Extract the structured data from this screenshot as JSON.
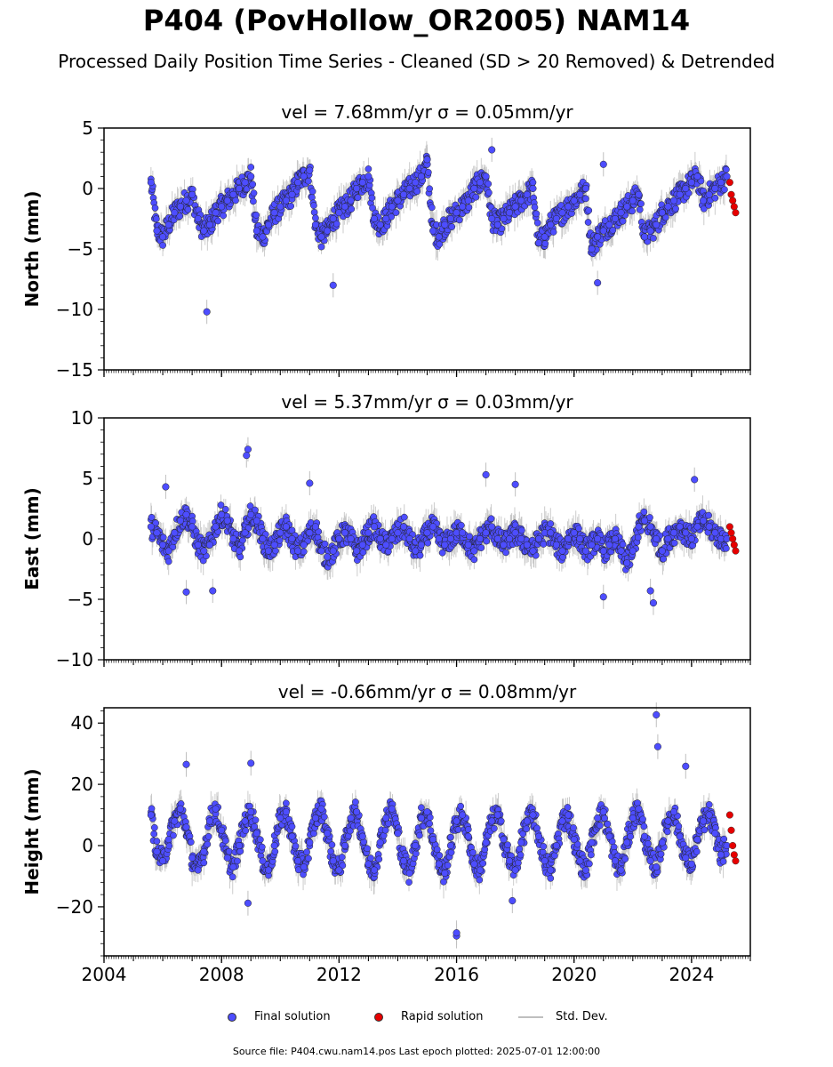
{
  "figure": {
    "title": "P404 (PovHollow_OR2005) NAM14",
    "subtitle": "Processed Daily Position Time Series - Cleaned (SD > 20 Removed) & Detrended",
    "footer": "Source file: P404.cwu.nam14.pos  Last epoch plotted: 2025-07-01 12:00:00"
  },
  "legend": {
    "final": "Final solution",
    "rapid": "Rapid solution",
    "std": "Std. Dev."
  },
  "colors": {
    "final": "#4d4dff",
    "rapid": "#e60000",
    "std": "#bfbfbf",
    "axis": "#000000"
  },
  "chart_data": [
    {
      "type": "scatter",
      "title": "vel = 7.68mm/yr   σ = 0.05mm/yr",
      "ylabel": "North (mm)",
      "xlabel": "",
      "xlim": [
        2004.0,
        2026.0
      ],
      "ylim": [
        -15,
        5
      ],
      "yticks": [
        5,
        0,
        -5,
        -10,
        -15
      ],
      "xticks": [
        2004,
        2008,
        2012,
        2016,
        2020,
        2024
      ],
      "show_xticklabels": false,
      "grid": false,
      "series": [
        {
          "name": "Final solution",
          "x": [
            2005.6,
            2005.8,
            2006.0,
            2006.2,
            2006.4,
            2006.6,
            2006.8,
            2007.0,
            2007.2,
            2007.4,
            2007.6,
            2007.8,
            2008.0,
            2008.2,
            2008.4,
            2008.6,
            2008.8,
            2009.0,
            2009.2,
            2009.4,
            2009.6,
            2009.8,
            2010.0,
            2010.2,
            2010.4,
            2010.6,
            2010.8,
            2011.0,
            2011.2,
            2011.4,
            2011.6,
            2011.8,
            2012.0,
            2012.2,
            2012.4,
            2012.6,
            2012.8,
            2013.0,
            2013.2,
            2013.4,
            2013.6,
            2013.8,
            2014.0,
            2014.2,
            2014.4,
            2014.6,
            2014.8,
            2015.0,
            2015.2,
            2015.4,
            2015.6,
            2015.8,
            2016.0,
            2016.2,
            2016.4,
            2016.6,
            2016.8,
            2017.0,
            2017.2,
            2017.4,
            2017.6,
            2017.8,
            2018.0,
            2018.2,
            2018.4,
            2018.6,
            2018.8,
            2019.0,
            2019.2,
            2019.4,
            2019.6,
            2019.8,
            2020.0,
            2020.2,
            2020.4,
            2020.6,
            2020.8,
            2021.0,
            2021.2,
            2021.4,
            2021.6,
            2021.8,
            2022.0,
            2022.2,
            2022.4,
            2022.6,
            2022.8,
            2023.0,
            2023.2,
            2023.4,
            2023.6,
            2023.8,
            2024.0,
            2024.2,
            2024.4,
            2024.6,
            2024.8,
            2025.0,
            2025.2
          ],
          "y": [
            0.5,
            -3.5,
            -4,
            -3,
            -2,
            -1.5,
            -1,
            -0.5,
            -2.5,
            -3.5,
            -3,
            -2,
            -1.5,
            -1,
            -0.5,
            0,
            0.5,
            1,
            -3.5,
            -4,
            -3,
            -2,
            -1.5,
            -1,
            -0.5,
            0.5,
            1,
            1.5,
            -3,
            -4,
            -3.5,
            -2.5,
            -2,
            -1.5,
            -1,
            0,
            0.5,
            1,
            -2.5,
            -3,
            -2.5,
            -1.5,
            -1,
            -0.5,
            0,
            0.5,
            1,
            2,
            -3.5,
            -4,
            -3,
            -2.5,
            -2,
            -1.5,
            -1,
            0,
            0.5,
            1,
            -2.5,
            -3,
            -2.5,
            -2,
            -1.5,
            -1,
            -0.5,
            0,
            -4.5,
            -4,
            -3,
            -2.5,
            -2,
            -1.5,
            -1,
            -0.5,
            0,
            -5,
            -4,
            -3.5,
            -3,
            -2.5,
            -2,
            -1.5,
            -1,
            -0.5,
            -4,
            -3.5,
            -3,
            -2,
            -1.5,
            -1,
            -0.5,
            0,
            0.5,
            1,
            -1,
            -0.5,
            0,
            0.5,
            1
          ]
        },
        {
          "name": "Rapid solution",
          "x": [
            2025.3,
            2025.35,
            2025.4,
            2025.45,
            2025.5
          ],
          "y": [
            0.5,
            -0.5,
            -1,
            -1.5,
            -2
          ]
        }
      ],
      "outliers": [
        [
          2007.5,
          -10.2
        ],
        [
          2011.8,
          -8.0
        ],
        [
          2017.2,
          3.2
        ],
        [
          2020.8,
          -7.8
        ],
        [
          2015.0,
          2.4
        ],
        [
          2021.0,
          2.0
        ]
      ]
    },
    {
      "type": "scatter",
      "title": "vel = 5.37mm/yr   σ = 0.03mm/yr",
      "ylabel": "East (mm)",
      "xlabel": "",
      "xlim": [
        2004.0,
        2026.0
      ],
      "ylim": [
        -10,
        10
      ],
      "yticks": [
        10,
        5,
        0,
        -5,
        -10
      ],
      "xticks": [
        2004,
        2008,
        2012,
        2016,
        2020,
        2024
      ],
      "show_xticklabels": false,
      "grid": false,
      "series": [
        {
          "name": "Final solution",
          "x": [
            2005.6,
            2005.8,
            2006.0,
            2006.2,
            2006.4,
            2006.6,
            2006.8,
            2007.0,
            2007.2,
            2007.4,
            2007.6,
            2007.8,
            2008.0,
            2008.2,
            2008.4,
            2008.6,
            2008.8,
            2009.0,
            2009.2,
            2009.4,
            2009.6,
            2009.8,
            2010.0,
            2010.2,
            2010.4,
            2010.6,
            2010.8,
            2011.0,
            2011.2,
            2011.4,
            2011.6,
            2011.8,
            2012.0,
            2012.2,
            2012.4,
            2012.6,
            2012.8,
            2013.0,
            2013.2,
            2013.4,
            2013.6,
            2013.8,
            2014.0,
            2014.2,
            2014.4,
            2014.6,
            2014.8,
            2015.0,
            2015.2,
            2015.4,
            2015.6,
            2015.8,
            2016.0,
            2016.2,
            2016.4,
            2016.6,
            2016.8,
            2017.0,
            2017.2,
            2017.4,
            2017.6,
            2017.8,
            2018.0,
            2018.2,
            2018.4,
            2018.6,
            2018.8,
            2019.0,
            2019.2,
            2019.4,
            2019.6,
            2019.8,
            2020.0,
            2020.2,
            2020.4,
            2020.6,
            2020.8,
            2021.0,
            2021.2,
            2021.4,
            2021.6,
            2021.8,
            2022.0,
            2022.2,
            2022.4,
            2022.6,
            2022.8,
            2023.0,
            2023.2,
            2023.4,
            2023.6,
            2023.8,
            2024.0,
            2024.2,
            2024.4,
            2024.6,
            2024.8,
            2025.0,
            2025.2
          ],
          "y": [
            1,
            0.5,
            -0.5,
            -1,
            0.5,
            1.5,
            2,
            1,
            -0.5,
            -1,
            -0.5,
            1,
            2,
            1.5,
            0,
            -1,
            0.5,
            2,
            1.5,
            0,
            -1,
            -0.5,
            0.5,
            1,
            0,
            -1,
            -0.5,
            0.5,
            1,
            -1,
            -1.5,
            -1,
            0,
            0.5,
            0,
            -1,
            -0.5,
            0.5,
            1,
            0,
            -0.5,
            0,
            0.5,
            1,
            0,
            -1,
            -0.5,
            0.5,
            1,
            0,
            -0.5,
            0,
            0.5,
            0.5,
            -0.5,
            -1,
            0,
            0.5,
            1,
            0,
            -0.5,
            0,
            0.5,
            0,
            -0.5,
            -1,
            0,
            0.5,
            0.5,
            -0.5,
            -1,
            0,
            0.5,
            0,
            -1,
            -0.5,
            0,
            -1,
            -0.5,
            0,
            -1,
            -2,
            -1,
            1,
            1.5,
            1,
            0,
            -1,
            0,
            0.5,
            1,
            0.5,
            0,
            1,
            1.5,
            1,
            0.5,
            0,
            0
          ]
        },
        {
          "name": "Rapid solution",
          "x": [
            2025.3,
            2025.35,
            2025.4,
            2025.45,
            2025.5
          ],
          "y": [
            1,
            0.5,
            0,
            -0.5,
            -1
          ]
        }
      ],
      "outliers": [
        [
          2008.9,
          7.4
        ],
        [
          2008.85,
          6.9
        ],
        [
          2017.0,
          5.3
        ],
        [
          2024.1,
          4.9
        ],
        [
          2011.0,
          4.6
        ],
        [
          2006.1,
          4.3
        ],
        [
          2018.0,
          4.5
        ],
        [
          2022.7,
          -5.3
        ],
        [
          2022.6,
          -4.3
        ],
        [
          2007.7,
          -4.3
        ],
        [
          2006.8,
          -4.4
        ],
        [
          2021.0,
          -4.8
        ]
      ]
    },
    {
      "type": "scatter",
      "title": "vel = -0.66mm/yr   σ = 0.08mm/yr",
      "ylabel": "Height (mm)",
      "xlabel": "",
      "xlim": [
        2004.0,
        2026.0
      ],
      "ylim": [
        -36,
        45
      ],
      "yticks": [
        40,
        20,
        0,
        -20
      ],
      "xticks": [
        2004,
        2008,
        2012,
        2016,
        2020,
        2024
      ],
      "show_xticklabels": true,
      "grid": false,
      "series": [
        {
          "name": "Final solution",
          "x": [
            2005.6,
            2005.8,
            2006.0,
            2006.2,
            2006.4,
            2006.6,
            2006.8,
            2007.0,
            2007.2,
            2007.4,
            2007.6,
            2007.8,
            2008.0,
            2008.2,
            2008.4,
            2008.6,
            2008.8,
            2009.0,
            2009.2,
            2009.4,
            2009.6,
            2009.8,
            2010.0,
            2010.2,
            2010.4,
            2010.6,
            2010.8,
            2011.0,
            2011.2,
            2011.4,
            2011.6,
            2011.8,
            2012.0,
            2012.2,
            2012.4,
            2012.6,
            2012.8,
            2013.0,
            2013.2,
            2013.4,
            2013.6,
            2013.8,
            2014.0,
            2014.2,
            2014.4,
            2014.6,
            2014.8,
            2015.0,
            2015.2,
            2015.4,
            2015.6,
            2015.8,
            2016.0,
            2016.2,
            2016.4,
            2016.6,
            2016.8,
            2017.0,
            2017.2,
            2017.4,
            2017.6,
            2017.8,
            2018.0,
            2018.2,
            2018.4,
            2018.6,
            2018.8,
            2019.0,
            2019.2,
            2019.4,
            2019.6,
            2019.8,
            2020.0,
            2020.2,
            2020.4,
            2020.6,
            2020.8,
            2021.0,
            2021.2,
            2021.4,
            2021.6,
            2021.8,
            2022.0,
            2022.2,
            2022.4,
            2022.6,
            2022.8,
            2023.0,
            2023.2,
            2023.4,
            2023.6,
            2023.8,
            2024.0,
            2024.2,
            2024.4,
            2024.6,
            2024.8,
            2025.0,
            2025.2
          ],
          "y": [
            10,
            -2,
            -5,
            2,
            8,
            12,
            6,
            -4,
            -8,
            -2,
            8,
            12,
            5,
            -4,
            -7,
            0,
            8,
            11,
            4,
            -5,
            -8,
            0,
            9,
            11,
            3,
            -5,
            -7,
            1,
            9,
            12,
            4,
            -5,
            -8,
            0,
            9,
            11,
            3,
            -6,
            -8,
            1,
            9,
            12,
            4,
            -5,
            -9,
            0,
            9,
            11,
            2,
            -6,
            -9,
            0,
            8,
            10,
            3,
            -6,
            -8,
            1,
            8,
            10,
            2,
            -5,
            -8,
            1,
            8,
            10,
            3,
            -5,
            -8,
            0,
            8,
            10,
            2,
            -5,
            -8,
            1,
            9,
            11,
            3,
            -5,
            -8,
            1,
            9,
            12,
            3,
            -5,
            -7,
            1,
            8,
            11,
            3,
            -4,
            -6,
            2,
            8,
            10,
            4,
            -3,
            0
          ]
        },
        {
          "name": "Rapid solution",
          "x": [
            2025.3,
            2025.35,
            2025.4,
            2025.45,
            2025.5
          ],
          "y": [
            10,
            5,
            0,
            -3,
            -5
          ]
        }
      ],
      "outliers": [
        [
          2022.8,
          42.7
        ],
        [
          2022.85,
          32.3
        ],
        [
          2016.0,
          -29.5
        ],
        [
          2016.0,
          -28.5
        ],
        [
          2008.9,
          -18.8
        ],
        [
          2017.9,
          -18.0
        ],
        [
          2006.8,
          26.5
        ],
        [
          2009.0,
          26.9
        ],
        [
          2023.8,
          25.9
        ]
      ]
    }
  ]
}
